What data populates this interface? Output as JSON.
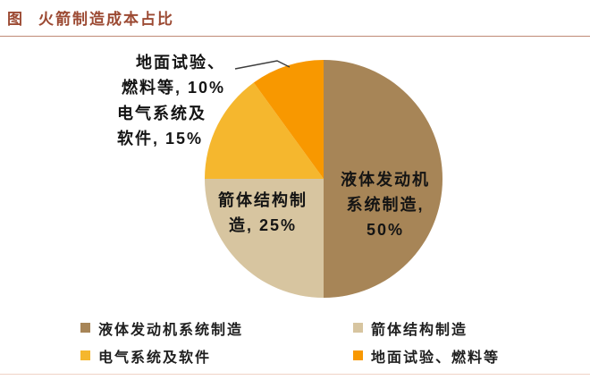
{
  "header": {
    "tag": "图",
    "title": "火箭制造成本占比"
  },
  "chart_data": {
    "type": "pie",
    "title": "火箭制造成本占比",
    "start_angle_deg": 0,
    "direction": "clockwise",
    "legend_position": "bottom",
    "segments": [
      {
        "label": "液体发动机系统制造",
        "value": 50,
        "color": "#a78557"
      },
      {
        "label": "箭体结构制造",
        "value": 25,
        "color": "#d7c5a0"
      },
      {
        "label": "电气系统及软件",
        "value": 15,
        "color": "#f5b72e"
      },
      {
        "label": "地面试验、燃料等",
        "value": 10,
        "color": "#f89800"
      }
    ]
  },
  "pie_labels": {
    "engine": "液体发动机\n系统制造,\n50%",
    "structure": "箭体结构制\n造, 25%",
    "electrical": "电气系统及\n软件, 15%",
    "ground": "地面试验、\n燃料等, 10%"
  },
  "legend": {
    "items": [
      {
        "label": "液体发动机系统制造",
        "color": "#a78557"
      },
      {
        "label": "箭体结构制造",
        "color": "#d7c5a0"
      },
      {
        "label": "电气系统及软件",
        "color": "#f5b72e"
      },
      {
        "label": "地面试验、燃料等",
        "color": "#f89800"
      }
    ]
  },
  "colors": {
    "title": "#9c4a33",
    "top_rule": "#c08a76",
    "bottom_rule": "#f0d2c6",
    "label_text": "#141414",
    "leader_line": "#3d3d3d"
  }
}
